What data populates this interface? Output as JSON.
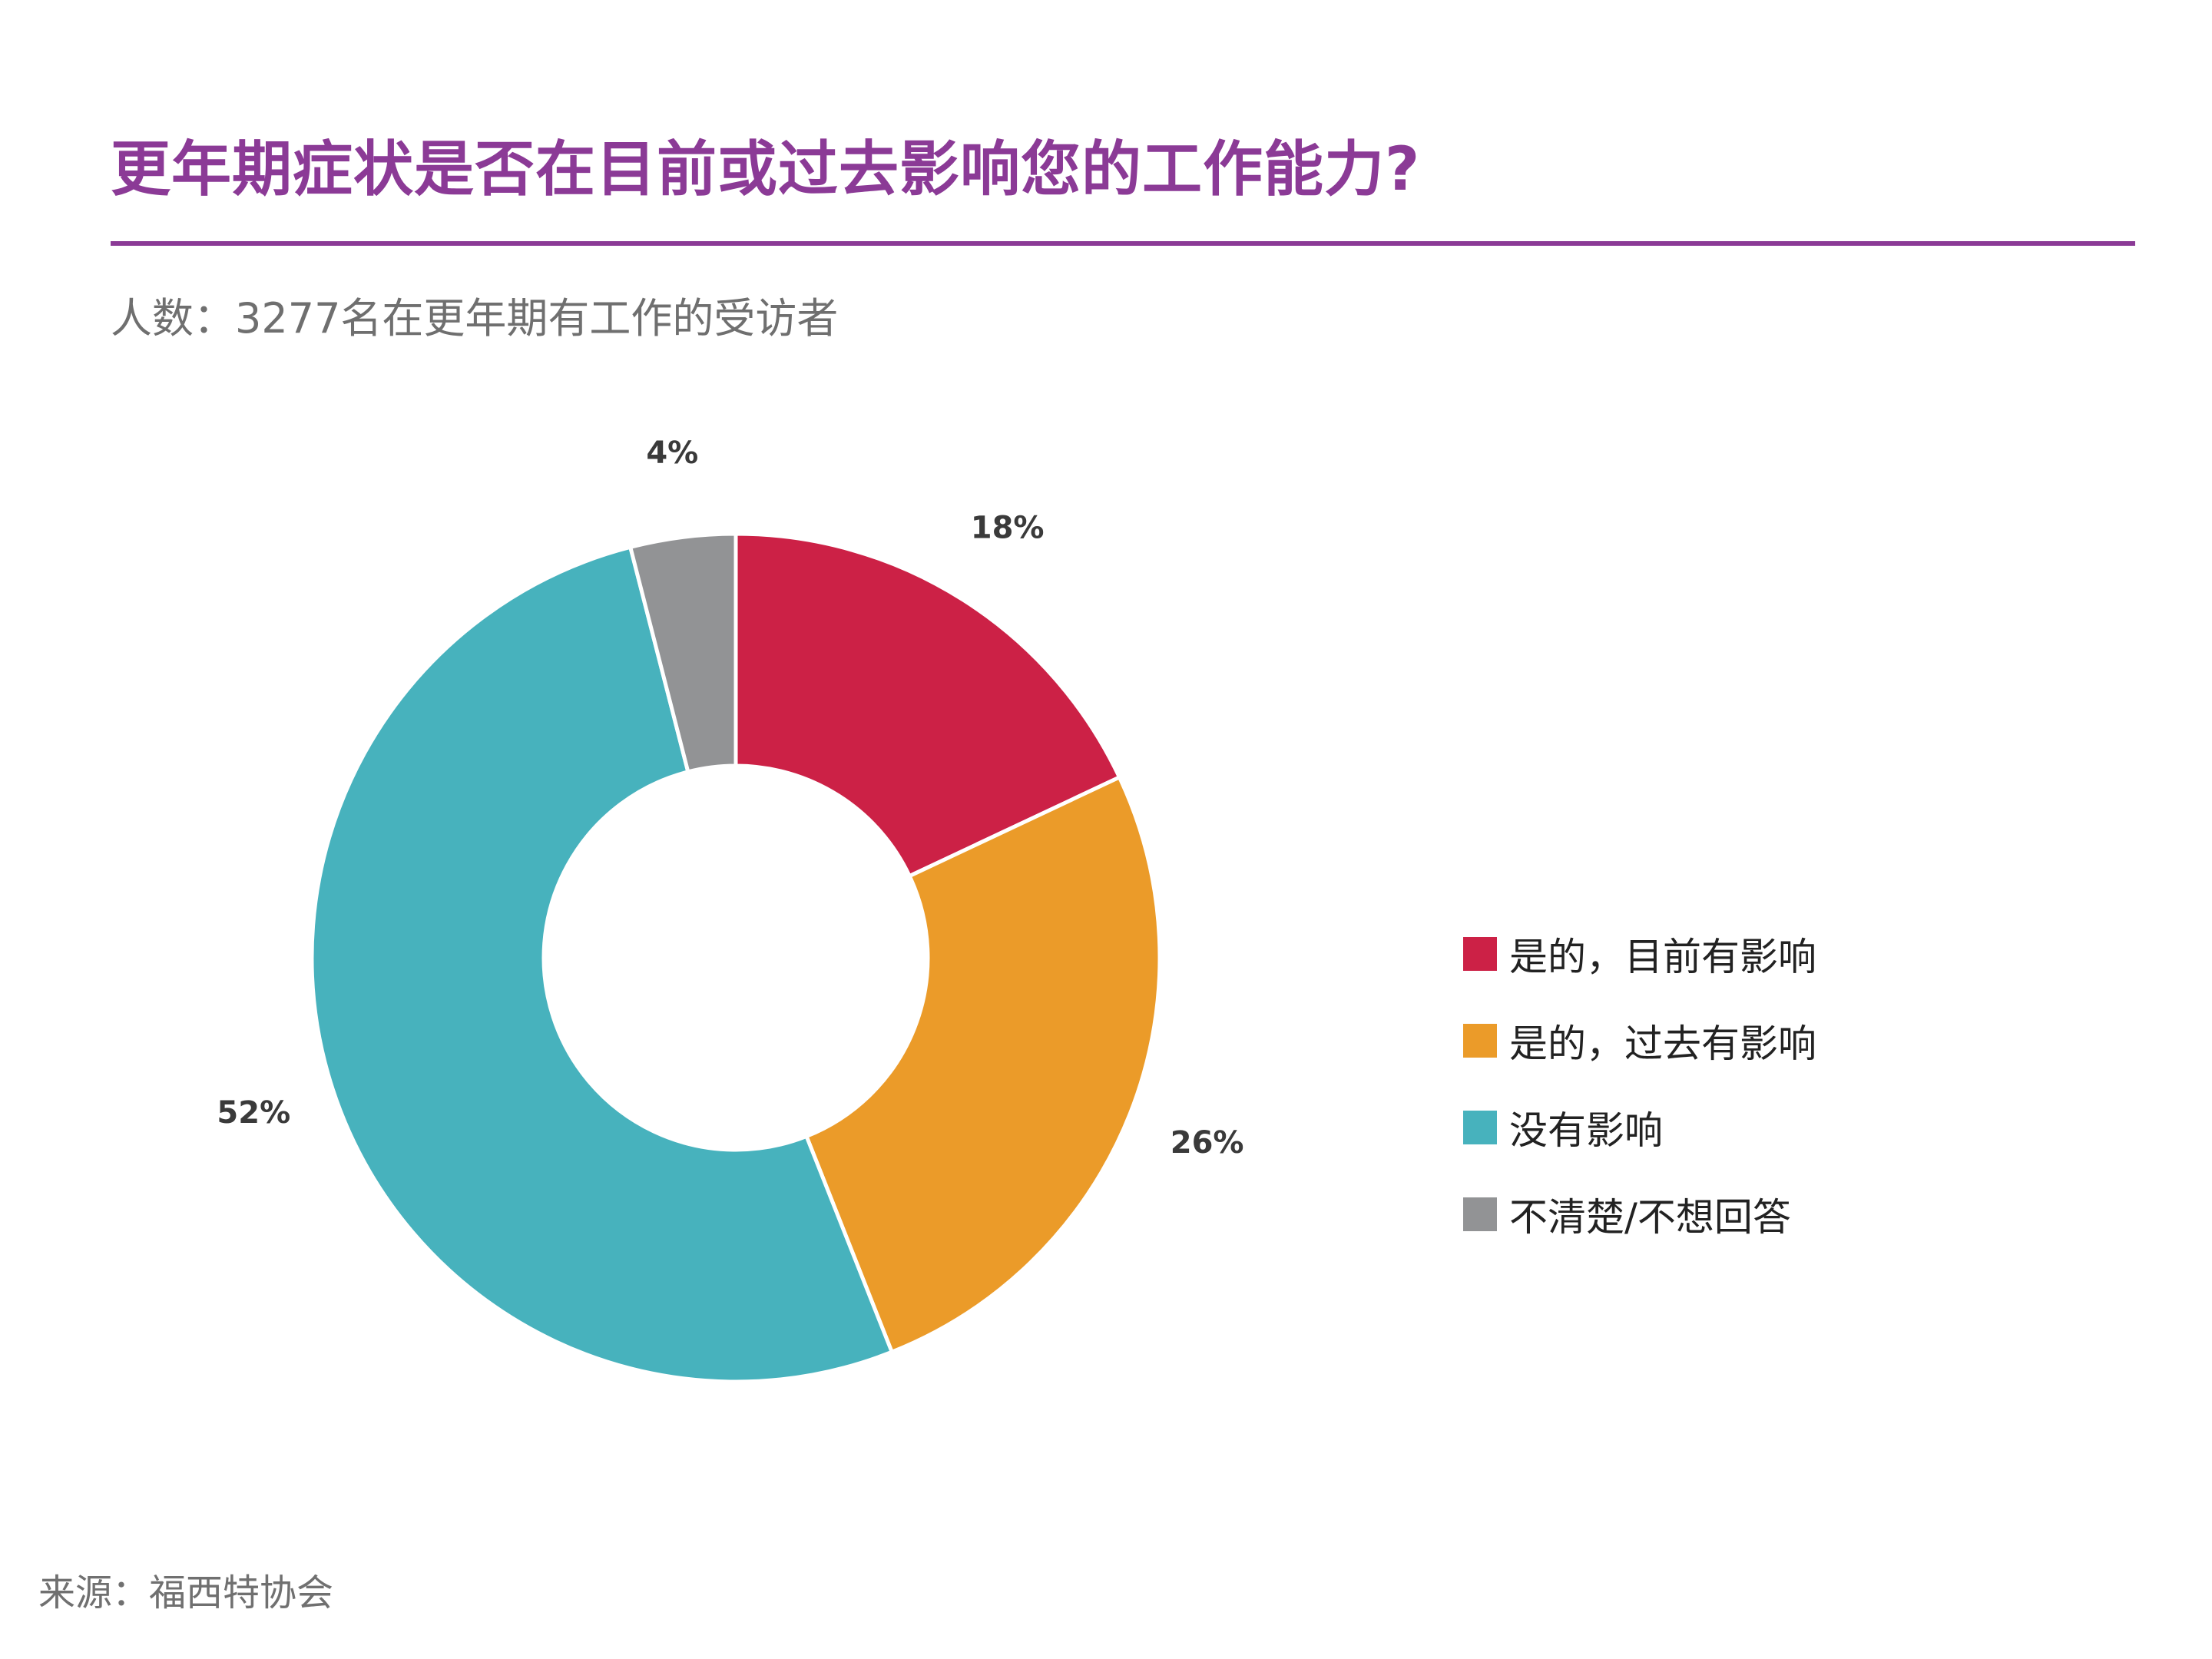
{
  "chart_data": {
    "type": "pie",
    "style": "donut",
    "title": "更年期症状是否在目前或过去影响您的工作能力?",
    "subtitle": "人数：3277名在更年期有工作的受访者",
    "source": "来源：福西特协会",
    "legend_position": "right",
    "slices": [
      {
        "name": "是的，目前有影响",
        "value": 18,
        "label": "18%",
        "color": "#cc2146"
      },
      {
        "name": "是的，过去有影响",
        "value": 26,
        "label": "26%",
        "color": "#eb9b29"
      },
      {
        "name": "没有影响",
        "value": 52,
        "label": "52%",
        "color": "#47b2bd"
      },
      {
        "name": "不清楚/不想回答",
        "value": 4,
        "label": "4%",
        "color": "#929395"
      }
    ]
  }
}
